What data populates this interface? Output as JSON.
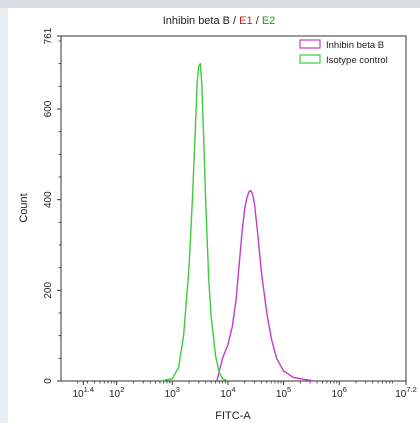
{
  "chart_data": {
    "type": "line",
    "title_parts": [
      {
        "text": "Inhibin beta B",
        "color": "#222222"
      },
      {
        "text": " / ",
        "color": "#222222"
      },
      {
        "text": "E1",
        "color": "#d01c1c"
      },
      {
        "text": " / ",
        "color": "#222222"
      },
      {
        "text": "E2",
        "color": "#1a9a1a"
      }
    ],
    "xlabel": "FITC-A",
    "ylabel": "Count",
    "x_scale": "log",
    "xlim": [
      10,
      15848932
    ],
    "ylim": [
      0,
      761
    ],
    "x_ticks": [
      {
        "value": 25.12,
        "base": "10",
        "exp": "1.4"
      },
      {
        "value": 100,
        "base": "10",
        "exp": "2"
      },
      {
        "value": 1000,
        "base": "10",
        "exp": "3"
      },
      {
        "value": 10000,
        "base": "10",
        "exp": "4"
      },
      {
        "value": 100000,
        "base": "10",
        "exp": "5"
      },
      {
        "value": 1000000,
        "base": "10",
        "exp": "6"
      },
      {
        "value": 15848932,
        "base": "10",
        "exp": "7.2"
      }
    ],
    "y_ticks": [
      0,
      200,
      400,
      600,
      761
    ],
    "grid": false,
    "legend_position": "top-right",
    "series": [
      {
        "name": "Inhibin beta B",
        "color": "#c23cc8",
        "x": [
          6300,
          8000,
          10000,
          12000,
          14000,
          16000,
          18000,
          20000,
          22000,
          24000,
          26000,
          28000,
          30000,
          34000,
          40000,
          50000,
          60000,
          75000,
          100000,
          150000,
          250000,
          350000
        ],
        "y": [
          0,
          50,
          80,
          120,
          180,
          260,
          330,
          380,
          405,
          418,
          420,
          410,
          390,
          330,
          240,
          150,
          95,
          50,
          22,
          8,
          3,
          0
        ]
      },
      {
        "name": "Isotype control",
        "color": "#3ccc3c",
        "x": [
          630,
          1000,
          1300,
          1600,
          2000,
          2300,
          2600,
          2800,
          3000,
          3200,
          3400,
          3700,
          4000,
          4500,
          5000,
          6000,
          7000,
          8000,
          10000
        ],
        "y": [
          0,
          5,
          30,
          100,
          250,
          400,
          560,
          660,
          695,
          700,
          650,
          520,
          390,
          230,
          140,
          55,
          18,
          5,
          0
        ]
      }
    ]
  }
}
